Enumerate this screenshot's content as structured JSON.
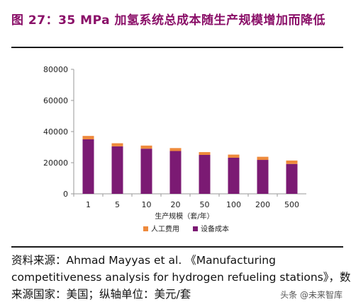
{
  "title": "图 27：35 MPa 加氢系统总成本随生产规模增加而降低",
  "chart_data": {
    "type": "bar",
    "stacked": true,
    "categories": [
      "1",
      "5",
      "10",
      "20",
      "50",
      "100",
      "200",
      "500"
    ],
    "series": [
      {
        "name": "设备成本",
        "color": "#7b1a73",
        "values": [
          35000,
          30500,
          29000,
          27500,
          25000,
          23200,
          21800,
          19200
        ]
      },
      {
        "name": "人工费用",
        "color": "#ee8a3c",
        "values": [
          2200,
          2000,
          2000,
          1900,
          1800,
          2000,
          2000,
          2200
        ]
      }
    ],
    "xlabel": "生产规模（套/年）",
    "ylabel": "",
    "ylim": [
      0,
      80000
    ],
    "yticks": [
      "0",
      "20000",
      "40000",
      "60000",
      "80000"
    ],
    "grid": false,
    "legend_position": "bottom"
  },
  "source": {
    "line1": "资料来源：Ahmad Mayyas et al. 《Manufacturing",
    "line2": "competitiveness analysis for hydrogen refueling stations》，数据",
    "line3": "来源国家：美国；纵轴单位：美元/套"
  },
  "watermark": "头条 @未来智库"
}
